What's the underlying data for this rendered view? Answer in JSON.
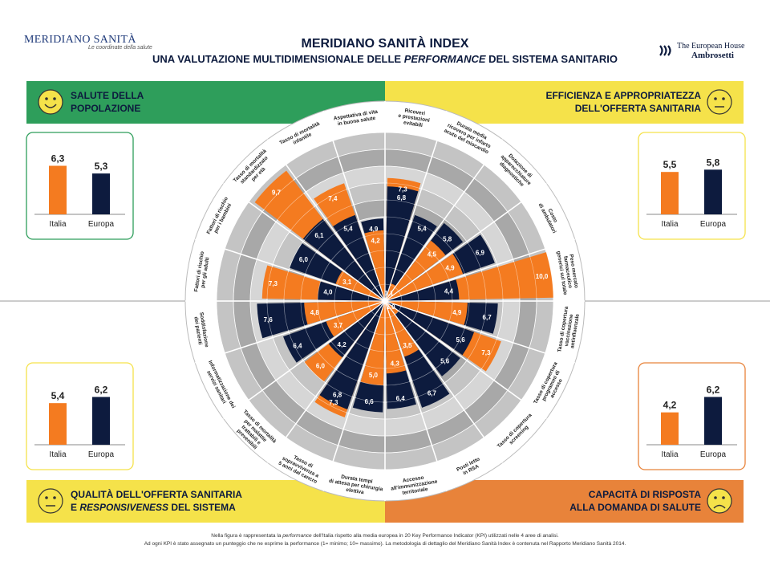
{
  "header": {
    "logo_left": "MERIDIANO SANITÀ",
    "logo_left_tagline": "Le coordinate della salute",
    "title": "MERIDIANO SANITÀ INDEX",
    "subtitle_pre": "UNA VALUTAZIONE MULTIDIMENSIONALE DELLE ",
    "subtitle_em": "PERFORMANCE",
    "subtitle_post": " DEL SISTEMA SANITARIO",
    "logo_right_line1": "The European House",
    "logo_right_line2": "Ambrosetti"
  },
  "quadrants": [
    {
      "id": "tl",
      "line1": "SALUTE DELLA",
      "line2": "POPOLAZIONE",
      "color": "#2e9e5b",
      "face": "happy",
      "italia": 6.3,
      "europa": 5.3
    },
    {
      "id": "tr",
      "line1": "EFFICIENZA E APPROPRIATEZZA",
      "line2": "DELL'OFFERTA SANITARIA",
      "color": "#f5e24a",
      "face": "neutral",
      "italia": 5.5,
      "europa": 5.8
    },
    {
      "id": "bl",
      "line1": "QUALITÀ DELL'OFFERTA SANITARIA",
      "line2_pre": "E ",
      "line2_em": "RESPONSIVENESS",
      "line2_post": " DEL SISTEMA",
      "color": "#f5e24a",
      "face": "neutral",
      "italia": 5.4,
      "europa": 6.2
    },
    {
      "id": "br",
      "line1": "CAPACITÀ DI RISPOSTA",
      "line2": "ALLA DOMANDA DI SALUTE",
      "color": "#e8833a",
      "face": "sad",
      "italia": 4.2,
      "europa": 6.2
    }
  ],
  "bar_labels": {
    "italia": "Italia",
    "europa": "Europa"
  },
  "colors": {
    "italia": "#f47b20",
    "europa": "#0d1b3e",
    "green": "#2e9e5b",
    "yellow": "#f5e24a",
    "orange": "#e8833a",
    "ring_light": "#d9d9d9",
    "ring_mid": "#bdbdbd",
    "ring_dark": "#a6a6a6"
  },
  "chart_data": {
    "type": "polar-area",
    "scale": [
      0,
      10
    ],
    "series": [
      {
        "name": "Italia"
      },
      {
        "name": "Europa"
      }
    ],
    "kpis": [
      {
        "label": [
          "Aspettativa di vita",
          "in buona salute"
        ],
        "italia": 4.2,
        "europa": 4.9
      },
      {
        "label": [
          "Tasso di mortalità",
          "infantile"
        ],
        "italia": 7.4,
        "europa": 5.4
      },
      {
        "label": [
          "Tasso di mortalità",
          "standardizzato",
          "per età"
        ],
        "italia": 9.7,
        "europa": 6.1
      },
      {
        "label": [
          "Fattori di rischio",
          "per i bambini"
        ],
        "italia": 3.1,
        "europa": 6.0
      },
      {
        "label": [
          "Fattori di rischio",
          "per gli adulti"
        ],
        "italia": 7.3,
        "europa": 4.0
      },
      {
        "label": [
          "Soddisfazione",
          "dei pazienti"
        ],
        "italia": 4.8,
        "europa": 7.6
      },
      {
        "label": [
          "Informatizzazione dei",
          "servizi sanitari"
        ],
        "italia": 3.7,
        "europa": 6.4
      },
      {
        "label": [
          "Tasso di mortalità",
          "per malattie",
          "trattabili e",
          "prevenibili"
        ],
        "italia": 6.0,
        "europa": 4.2
      },
      {
        "label": [
          "Tasso di",
          "sopravvivenza a",
          "5 anni dal cancro"
        ],
        "italia": 7.3,
        "europa": 6.8
      },
      {
        "label": [
          "Durata tempi",
          "di attesa per chirurgia",
          "elettiva"
        ],
        "italia": 5.0,
        "europa": 6.6
      },
      {
        "label": [
          "Accesso",
          "all'immunizzazione",
          "territoriale"
        ],
        "italia": 4.3,
        "europa": 6.4
      },
      {
        "label": [
          "Posti letto",
          "in RSA"
        ],
        "italia": 3.5,
        "europa": 6.7
      },
      {
        "label": [
          "Tasso di copertura",
          "screening"
        ],
        "italia": 1.0,
        "europa": 5.6
      },
      {
        "label": [
          "Tasso di copertura",
          "programmi di",
          "accesso"
        ],
        "italia": 7.3,
        "europa": 5.6
      },
      {
        "label": [
          "Tasso di copertura",
          "vaccinazione",
          "antinfluenzale"
        ],
        "italia": 4.9,
        "europa": 6.7
      },
      {
        "label": [
          "Peso mercato",
          "farmaceutico",
          "generici sul totale"
        ],
        "italia": 10.0,
        "europa": 4.4
      },
      {
        "label": [
          "Costo",
          "di ambulatori"
        ],
        "italia": 4.9,
        "europa": 6.9
      },
      {
        "label": [
          "Dotazione di",
          "apparecchiature",
          "diagnostiche"
        ],
        "italia": 4.5,
        "europa": 5.8
      },
      {
        "label": [
          "Durata media",
          "ricovero per infarto",
          "acuto del miocardio"
        ],
        "italia": 1.1,
        "europa": 5.4
      },
      {
        "label": [
          "Ricoveri",
          "e prestazioni",
          "evitabili"
        ],
        "italia": 7.3,
        "europa": 6.8
      }
    ]
  },
  "footnote_line1_pre": "Nella figura è rappresentata la ",
  "footnote_line1_em": "performance",
  "footnote_line1_post": " dell'Italia rispetto alla media europea in 20 Key Performance Indicator (KPI) utilizzati nelle 4 aree di analisi.",
  "footnote_line2": "Ad ogni KPI è stato assegnato un punteggio che ne esprime la performance (1= minimo; 10= massimo). La metodologia di dettaglio del Meridiano Sanità Index è contenuta nel Rapporto Meridiano Sanità 2014."
}
